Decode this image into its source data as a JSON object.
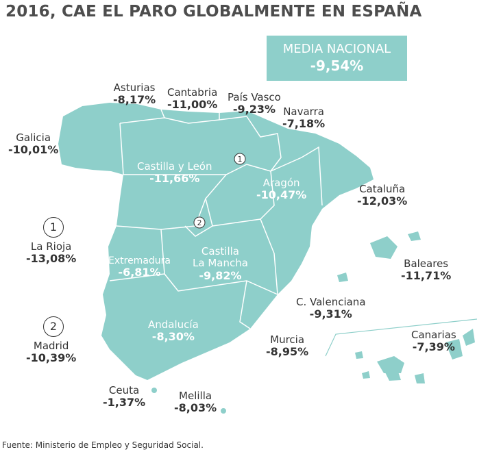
{
  "title": "2016, CAE EL PARO GLOBALMENTE EN ESPAÑA",
  "media": {
    "label": "MEDIA NACIONAL",
    "value": "-9,54%"
  },
  "regions": {
    "asturias": {
      "name": "Asturias",
      "value": "-8,17%"
    },
    "cantabria": {
      "name": "Cantabria",
      "value": "-11,00%"
    },
    "pais_vasco": {
      "name": "País Vasco",
      "value": "-9,23%"
    },
    "navarra": {
      "name": "Navarra",
      "value": "-7,18%"
    },
    "galicia": {
      "name": "Galicia",
      "value": "-10,01%"
    },
    "castilla_leon": {
      "name": "Castilla y León",
      "value": "-11,66%"
    },
    "aragon": {
      "name": "Aragón",
      "value": "-10,47%"
    },
    "cataluna": {
      "name": "Cataluña",
      "value": "-12,03%"
    },
    "la_rioja": {
      "name": "La Rioja",
      "value": "-13,08%",
      "marker": "1"
    },
    "extremadura": {
      "name": "Extremadura",
      "value": "-6,81%"
    },
    "castilla_mancha": {
      "name": "Castilla",
      "name2": "La Mancha",
      "value": "-9,82%"
    },
    "baleares": {
      "name": "Baleares",
      "value": "-11,71%"
    },
    "c_valenciana": {
      "name": "C. Valenciana",
      "value": "-9,31%"
    },
    "madrid": {
      "name": "Madrid",
      "value": "-10,39%",
      "marker": "2"
    },
    "andalucia": {
      "name": "Andalucía",
      "value": "-8,30%"
    },
    "murcia": {
      "name": "Murcia",
      "value": "-8,95%"
    },
    "canarias": {
      "name": "Canarias",
      "value": "-7,39%"
    },
    "ceuta": {
      "name": "Ceuta",
      "value": "-1,37%"
    },
    "melilla": {
      "name": "Melilla",
      "value": "-8,03%"
    }
  },
  "source": "Fuente: Ministerio de Empleo y Seguridad Social.",
  "colors": {
    "map_fill": "#8ecfca",
    "border": "#ffffff",
    "text": "#333333"
  }
}
